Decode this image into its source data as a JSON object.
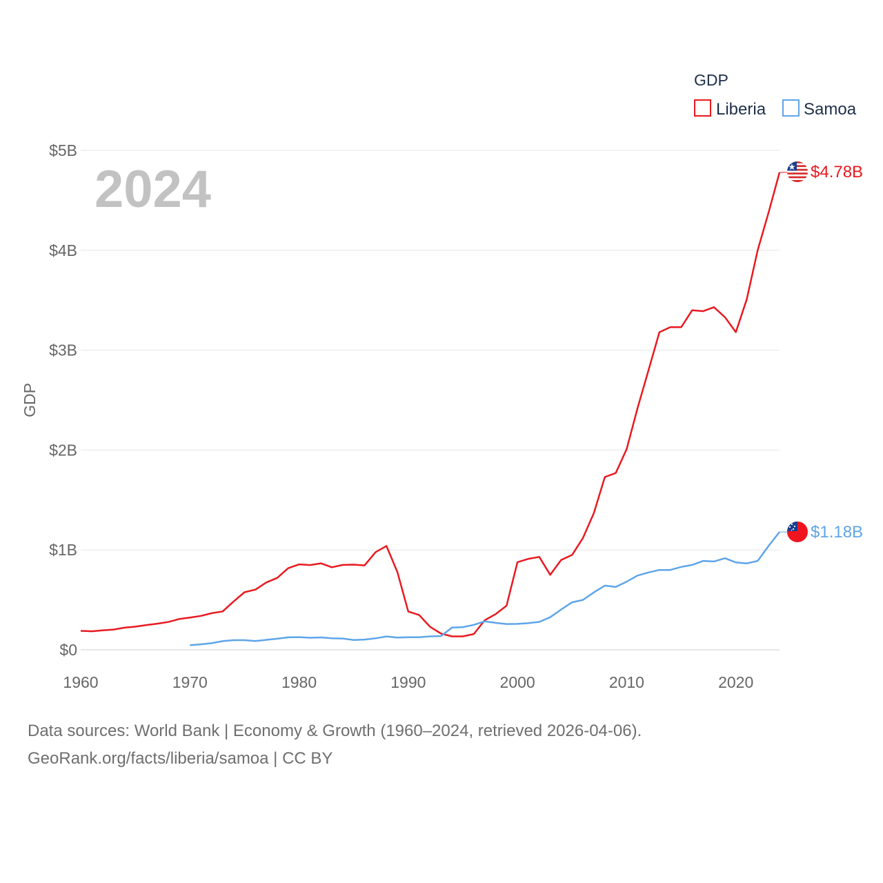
{
  "chart_data": {
    "type": "line",
    "current_year_label": "2024",
    "legend_title": "GDP",
    "ylabel": "GDP",
    "xlim": [
      1960,
      2024
    ],
    "ylim": [
      0,
      5000000000
    ],
    "x_ticks": [
      1960,
      1970,
      1980,
      1990,
      2000,
      2010,
      2020
    ],
    "y_ticks": [
      {
        "value": 0,
        "label": "$0"
      },
      {
        "value": 1000000000,
        "label": "$1B"
      },
      {
        "value": 2000000000,
        "label": "$2B"
      },
      {
        "value": 3000000000,
        "label": "$3B"
      },
      {
        "value": 4000000000,
        "label": "$4B"
      },
      {
        "value": 5000000000,
        "label": "$5B"
      }
    ],
    "series": [
      {
        "name": "Liberia",
        "color": "#e8191f",
        "end_label": "$4.78B",
        "flag_icon": "liberia-flag-icon",
        "x": [
          1960,
          1961,
          1962,
          1963,
          1964,
          1965,
          1966,
          1967,
          1968,
          1969,
          1970,
          1971,
          1972,
          1973,
          1974,
          1975,
          1976,
          1977,
          1978,
          1979,
          1980,
          1981,
          1982,
          1983,
          1984,
          1985,
          1986,
          1987,
          1988,
          1989,
          1990,
          1991,
          1992,
          1993,
          1994,
          1995,
          1996,
          1997,
          1998,
          1999,
          2000,
          2001,
          2002,
          2003,
          2004,
          2005,
          2006,
          2007,
          2008,
          2009,
          2010,
          2011,
          2012,
          2013,
          2014,
          2015,
          2016,
          2017,
          2018,
          2019,
          2020,
          2021,
          2022,
          2023,
          2024
        ],
        "values": [
          0.19,
          0.186,
          0.195,
          0.203,
          0.222,
          0.232,
          0.248,
          0.262,
          0.278,
          0.308,
          0.323,
          0.34,
          0.367,
          0.385,
          0.484,
          0.577,
          0.603,
          0.675,
          0.72,
          0.817,
          0.856,
          0.849,
          0.866,
          0.827,
          0.85,
          0.853,
          0.845,
          0.978,
          1.04,
          0.78,
          0.384,
          0.348,
          0.23,
          0.163,
          0.135,
          0.135,
          0.158,
          0.296,
          0.358,
          0.442,
          0.878,
          0.911,
          0.93,
          0.751,
          0.899,
          0.95,
          1.12,
          1.37,
          1.73,
          1.77,
          2.01,
          2.42,
          2.8,
          3.18,
          3.23,
          3.23,
          3.4,
          3.39,
          3.43,
          3.33,
          3.18,
          3.51,
          4.0,
          4.38,
          4.78
        ]
      },
      {
        "name": "Samoa",
        "color": "#5ea5e8",
        "end_label": "$1.18B",
        "flag_icon": "samoa-flag-icon",
        "x": [
          1970,
          1971,
          1972,
          1973,
          1974,
          1975,
          1976,
          1977,
          1978,
          1979,
          1980,
          1981,
          1982,
          1983,
          1984,
          1985,
          1986,
          1987,
          1988,
          1989,
          1990,
          1991,
          1992,
          1993,
          1994,
          1995,
          1996,
          1997,
          1998,
          1999,
          2000,
          2001,
          2002,
          2003,
          2004,
          2005,
          2006,
          2007,
          2008,
          2009,
          2010,
          2011,
          2012,
          2013,
          2014,
          2015,
          2016,
          2017,
          2018,
          2019,
          2020,
          2021,
          2022,
          2023,
          2024
        ],
        "values": [
          0.047,
          0.055,
          0.066,
          0.087,
          0.097,
          0.097,
          0.088,
          0.1,
          0.111,
          0.125,
          0.127,
          0.121,
          0.124,
          0.115,
          0.113,
          0.098,
          0.103,
          0.115,
          0.134,
          0.123,
          0.126,
          0.126,
          0.135,
          0.138,
          0.223,
          0.227,
          0.25,
          0.285,
          0.27,
          0.258,
          0.26,
          0.267,
          0.28,
          0.327,
          0.403,
          0.476,
          0.5,
          0.575,
          0.643,
          0.63,
          0.682,
          0.744,
          0.775,
          0.8,
          0.8,
          0.83,
          0.85,
          0.89,
          0.885,
          0.917,
          0.875,
          0.865,
          0.89,
          1.04,
          1.18
        ]
      }
    ]
  },
  "footer": {
    "line1": "Data sources: World Bank | Economy & Growth (1960–2024, retrieved 2026-04-06).",
    "line2": "GeoRank.org/facts/liberia/samoa | CC BY"
  }
}
